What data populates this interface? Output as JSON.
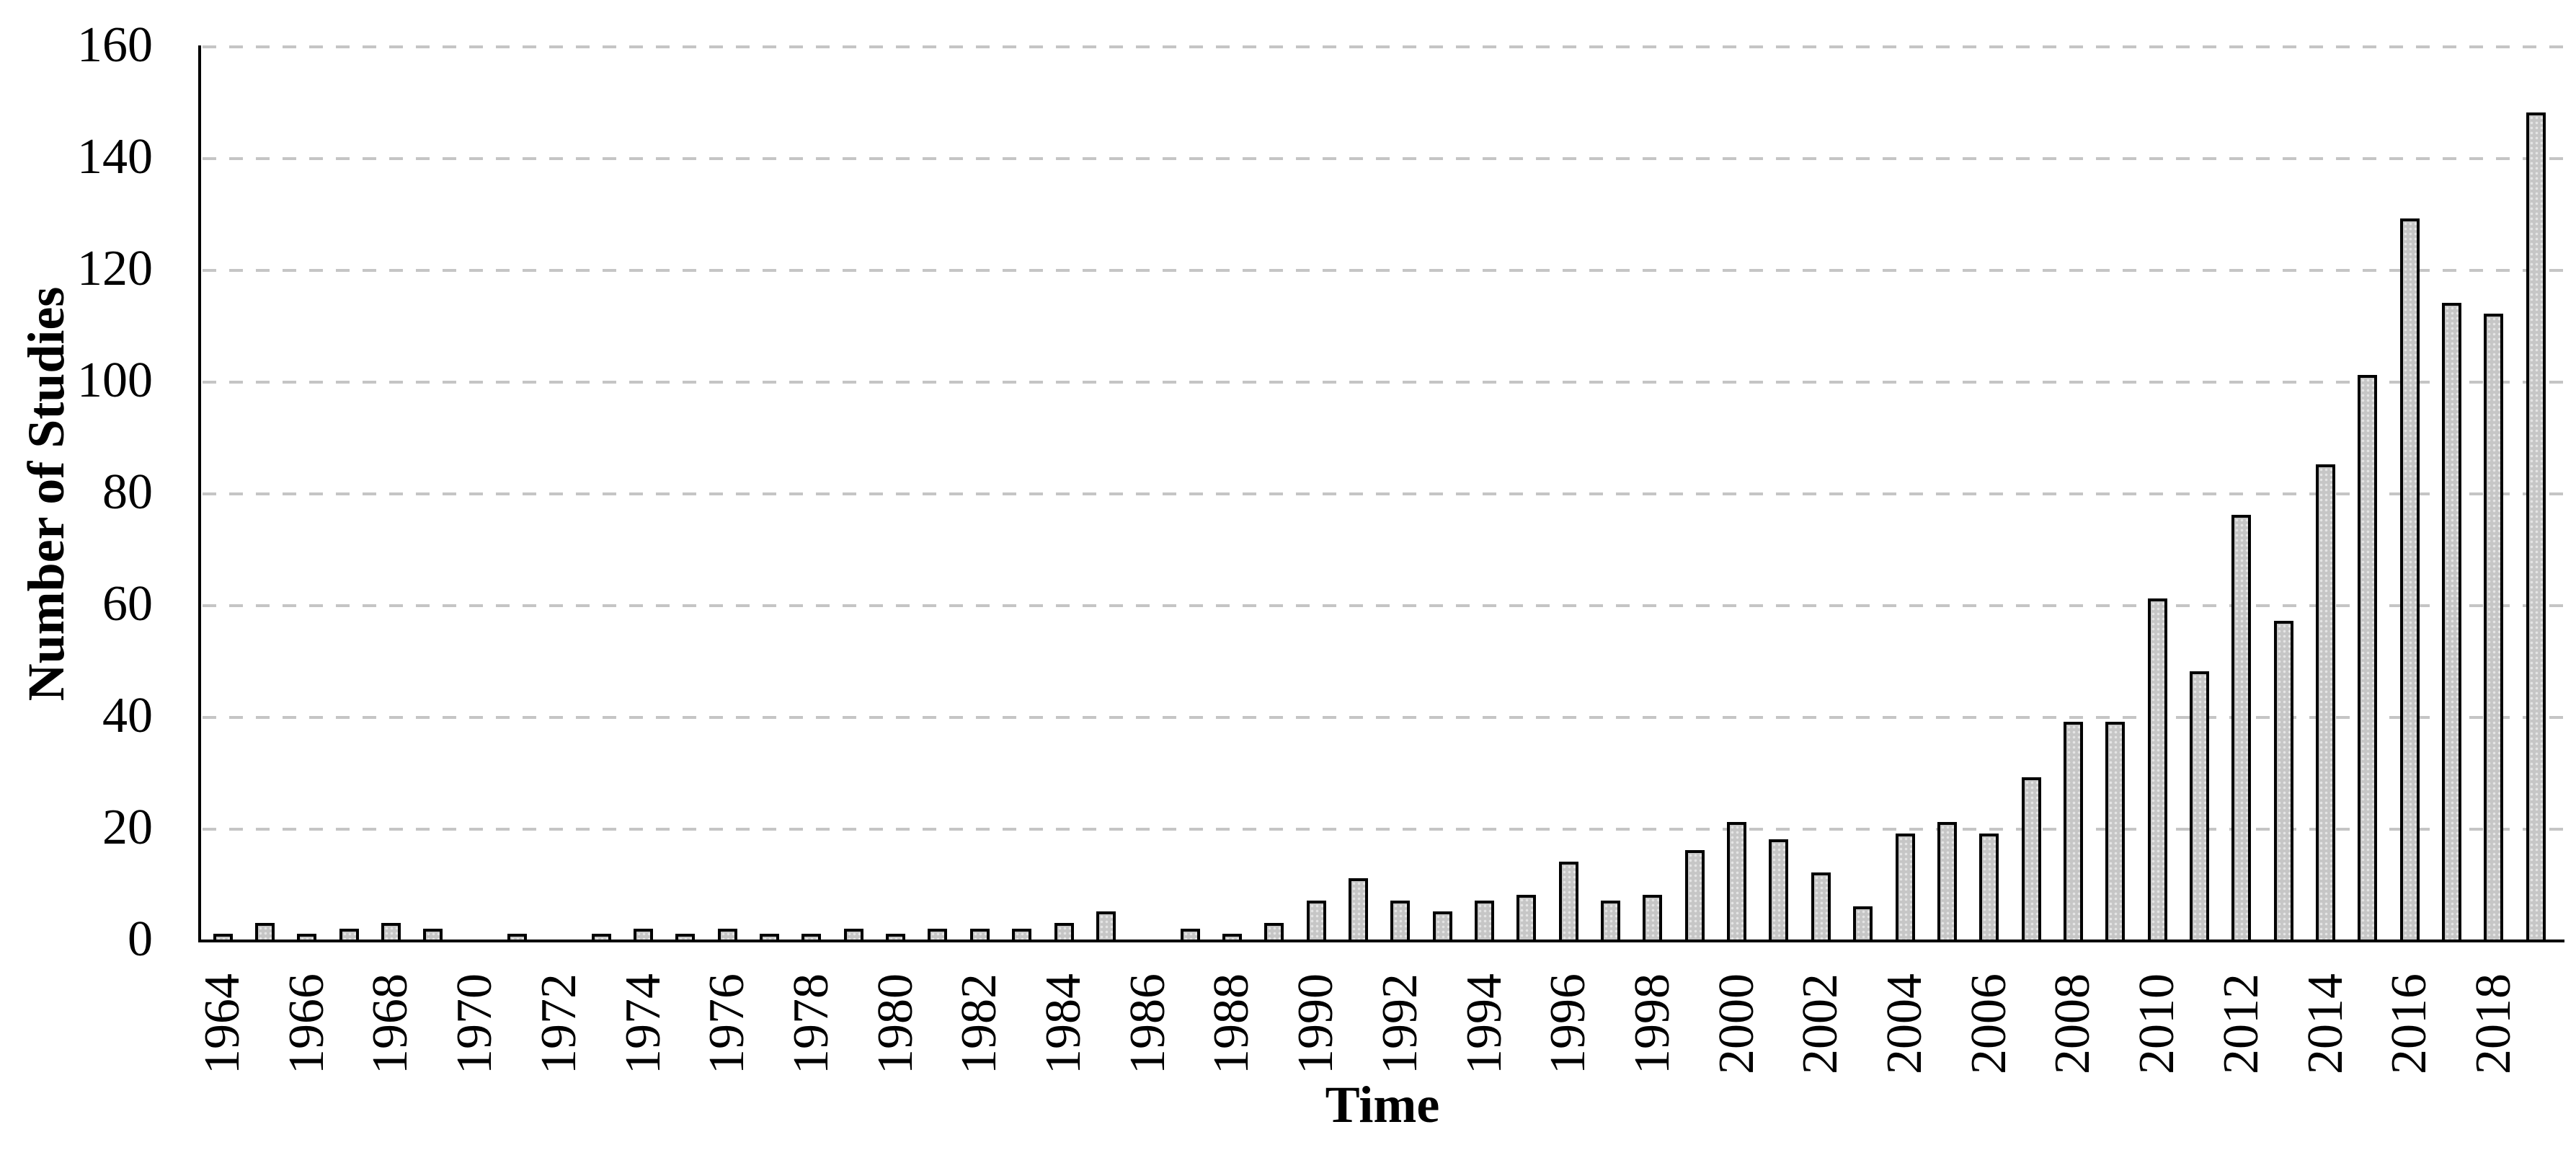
{
  "chart_data": {
    "type": "bar",
    "title": "",
    "xlabel": "Time",
    "ylabel": "Number of Studies",
    "x": [
      1964,
      1965,
      1966,
      1967,
      1968,
      1969,
      1970,
      1971,
      1972,
      1973,
      1974,
      1975,
      1976,
      1977,
      1978,
      1979,
      1980,
      1981,
      1982,
      1983,
      1984,
      1985,
      1986,
      1987,
      1988,
      1989,
      1990,
      1991,
      1992,
      1993,
      1994,
      1995,
      1996,
      1997,
      1998,
      1999,
      2000,
      2001,
      2002,
      2003,
      2004,
      2005,
      2006,
      2007,
      2008,
      2009,
      2010,
      2011,
      2012,
      2013,
      2014,
      2015,
      2016,
      2017,
      2018,
      2019
    ],
    "values": [
      1,
      3,
      1,
      2,
      3,
      2,
      0,
      1,
      0,
      1,
      2,
      1,
      2,
      1,
      1,
      2,
      1,
      2,
      2,
      2,
      3,
      5,
      0,
      2,
      1,
      3,
      7,
      11,
      7,
      5,
      7,
      8,
      14,
      7,
      8,
      16,
      21,
      18,
      12,
      6,
      19,
      21,
      19,
      29,
      39,
      39,
      61,
      48,
      76,
      57,
      85,
      101,
      129,
      114,
      112,
      148
    ],
    "ylim": [
      0,
      160
    ],
    "yticks": [
      0,
      20,
      40,
      60,
      80,
      100,
      120,
      140,
      160
    ],
    "xtick_labels": [
      "1964",
      "1966",
      "1968",
      "1970",
      "1972",
      "1974",
      "1976",
      "1978",
      "1980",
      "1982",
      "1984",
      "1986",
      "1988",
      "1990",
      "1992",
      "1994",
      "1996",
      "1998",
      "2000",
      "2002",
      "2004",
      "2006",
      "2008",
      "2010",
      "2012",
      "2014",
      "2016",
      "2018"
    ],
    "grid": "horizontal-dashed",
    "legend_position": "none",
    "bar_fill_color": "#c6c6c6",
    "bar_border_color": "#000000",
    "gridline_color": "#c5c5c5",
    "text_color": "#000000",
    "background_color": "#ffffff"
  }
}
